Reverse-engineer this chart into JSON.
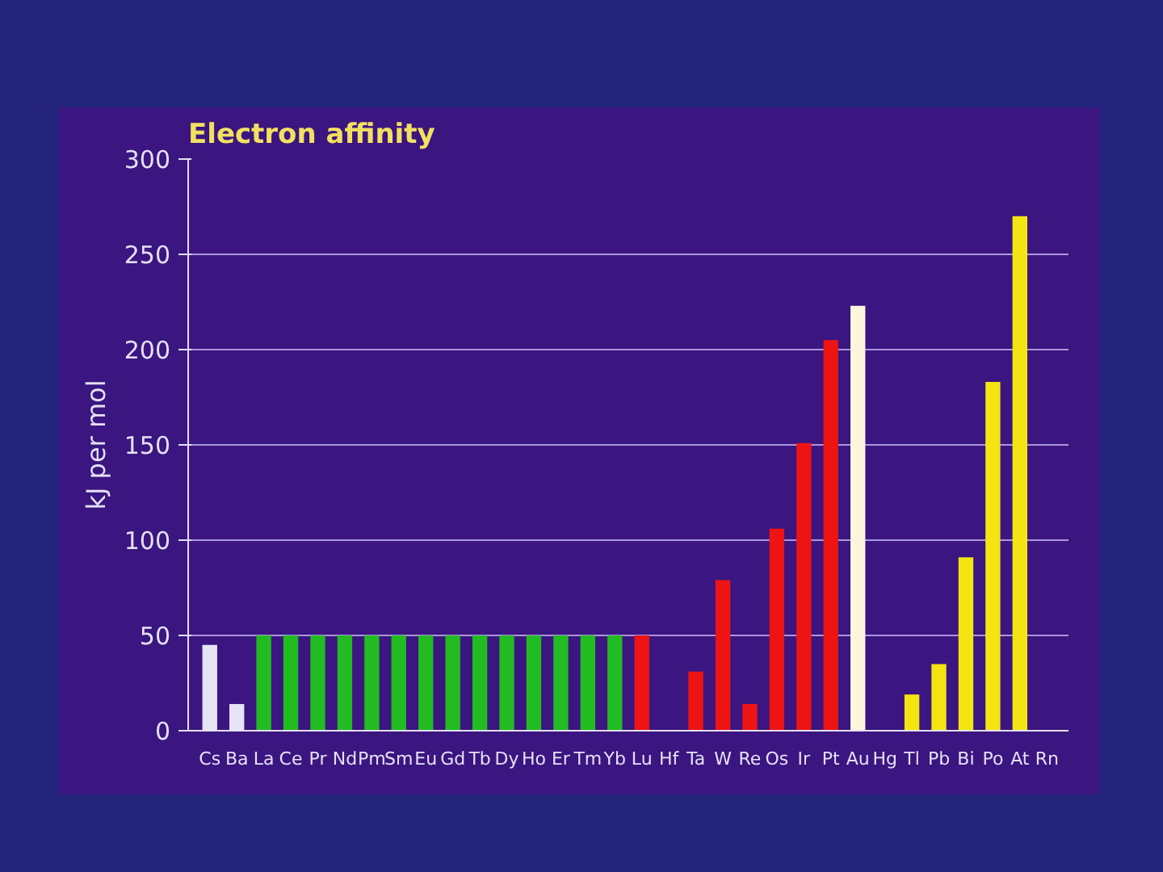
{
  "chart_data": {
    "type": "bar",
    "title": "Electron affinity",
    "ylabel": "kJ per mol",
    "categories": [
      "Cs",
      "Ba",
      "La",
      "Ce",
      "Pr",
      "Nd",
      "Pm",
      "Sm",
      "Eu",
      "Gd",
      "Tb",
      "Dy",
      "Ho",
      "Er",
      "Tm",
      "Yb",
      "Lu",
      "Hf",
      "Ta",
      "W",
      "Re",
      "Os",
      "Ir",
      "Pt",
      "Au",
      "Hg",
      "Tl",
      "Pb",
      "Bi",
      "Po",
      "At",
      "Rn"
    ],
    "values": [
      45,
      14,
      50,
      50,
      50,
      50,
      50,
      50,
      50,
      50,
      50,
      50,
      50,
      50,
      50,
      50,
      50,
      0,
      31,
      79,
      14,
      106,
      151,
      205,
      223,
      0,
      19,
      35,
      91,
      183,
      270,
      0
    ],
    "colors": [
      "#e6e4f6",
      "#e6e4f6",
      "#22bb22",
      "#22bb22",
      "#22bb22",
      "#22bb22",
      "#22bb22",
      "#22bb22",
      "#22bb22",
      "#22bb22",
      "#22bb22",
      "#22bb22",
      "#22bb22",
      "#22bb22",
      "#22bb22",
      "#22bb22",
      "#ee1414",
      "#ee1414",
      "#ee1414",
      "#ee1414",
      "#ee1414",
      "#ee1414",
      "#ee1414",
      "#ee1414",
      "#fbf6dc",
      "#d8d8e4",
      "#f4e412",
      "#f4e412",
      "#f4e412",
      "#f4e412",
      "#f4e412",
      "#f4e412"
    ],
    "ylim": [
      0,
      300
    ],
    "yticks": [
      0,
      50,
      100,
      150,
      200,
      250,
      300
    ],
    "grid": "y"
  }
}
